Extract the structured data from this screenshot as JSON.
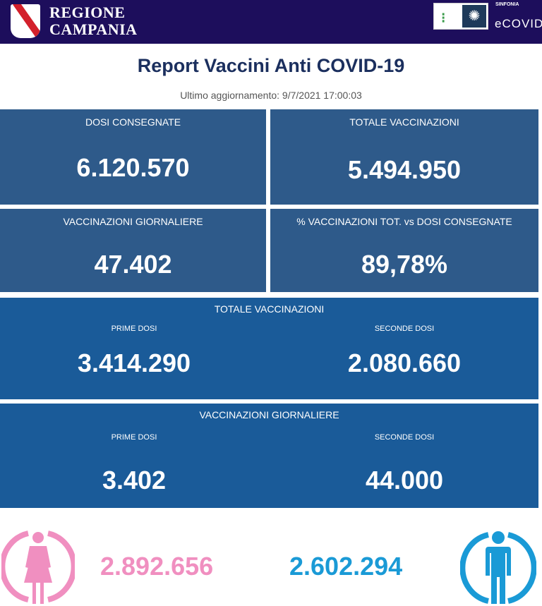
{
  "header": {
    "brand_line1": "REGIONE",
    "brand_line2": "CAMPANIA",
    "partner_small": "SINFONIA",
    "partner_name": "eCOVID"
  },
  "title": "Report Vaccini Anti COVID-19",
  "last_update": "Ultimo aggiornamento: 9/7/2021  17:00:03",
  "cards": [
    {
      "label": "DOSI  CONSEGNATE",
      "value": "6.120.570"
    },
    {
      "label": "TOTALE VACCINAZIONI",
      "value": "5.494.950"
    },
    {
      "label": "VACCINAZIONI GIORNALIERE",
      "value": "47.402"
    },
    {
      "label": "% VACCINAZIONI TOT. vs DOSI CONSEGNATE",
      "value": "89,78%"
    }
  ],
  "totale": {
    "label": "TOTALE VACCINAZIONI",
    "prime_label": "PRIME DOSI",
    "prime": "3.414.290",
    "seconde_label": "SECONDE DOSI",
    "seconde": "2.080.660"
  },
  "giornaliere": {
    "label": "VACCINAZIONI GIORNALIERE",
    "prime_label": "PRIME DOSI",
    "prime": "3.402",
    "seconde_label": "SECONDE DOSI",
    "seconde": "44.000"
  },
  "gender": {
    "female": "2.892.656",
    "male": "2.602.294",
    "female_color": "#f08fc0",
    "male_color": "#1a9ad6"
  }
}
